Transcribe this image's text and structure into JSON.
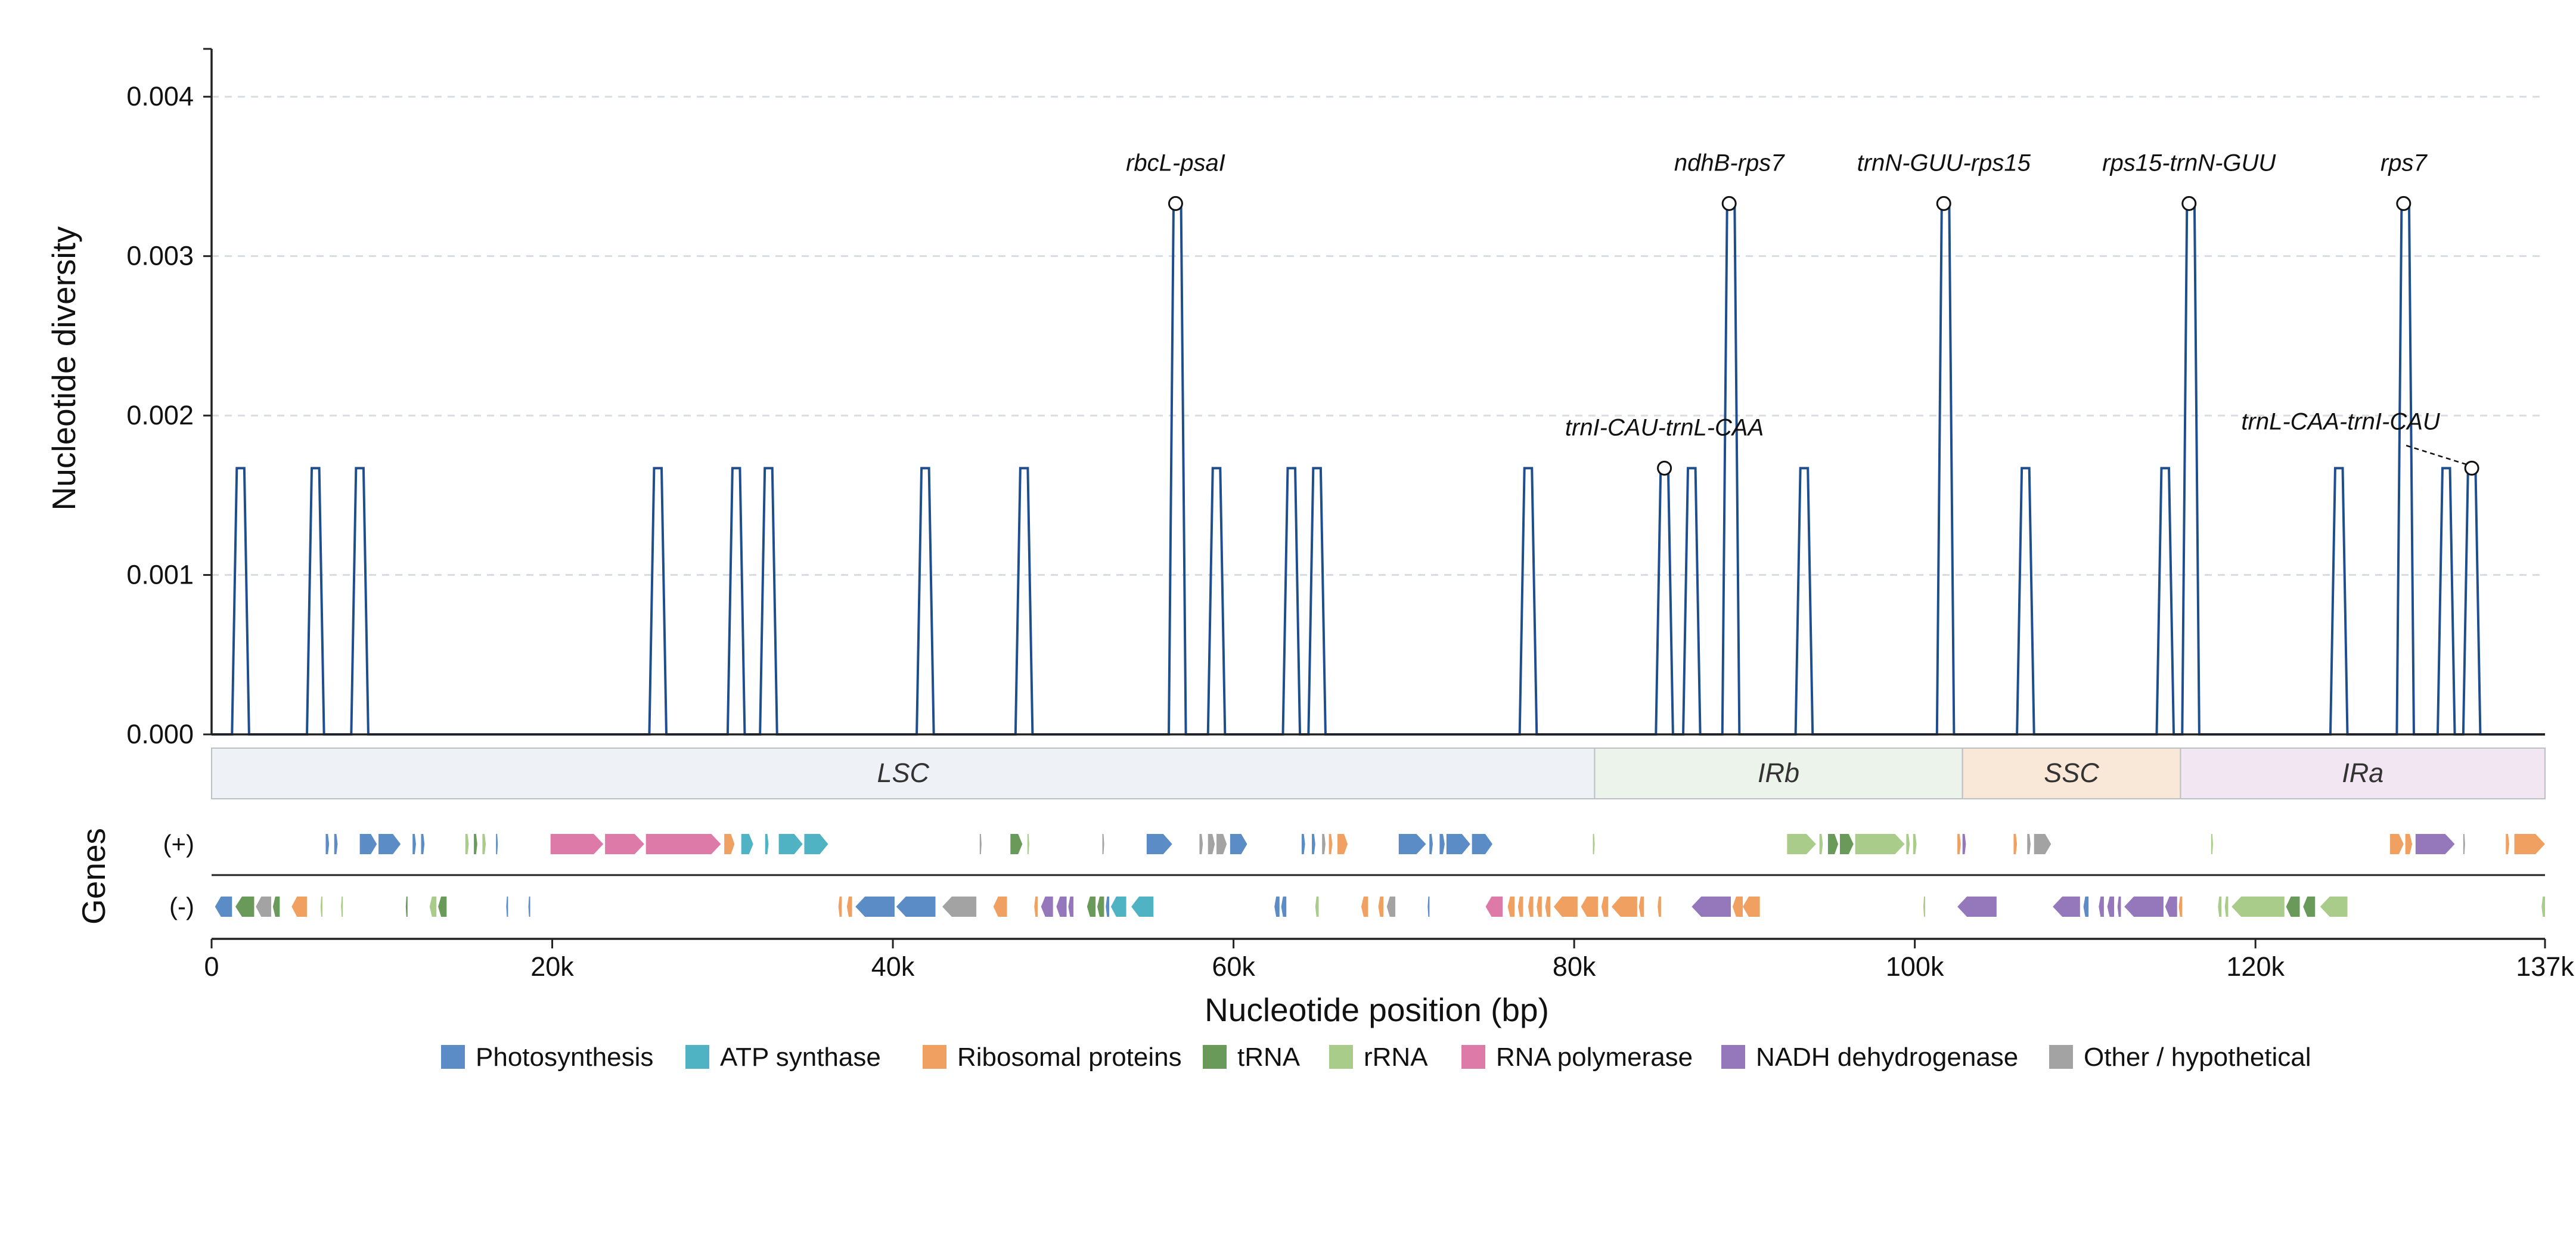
{
  "chart_data": {
    "type": "line",
    "ylabel": "Nucleotide diversity",
    "xlabel": "Nucleotide position (bp)",
    "xlim": [
      0,
      137000
    ],
    "ylim": [
      0,
      0.0043
    ],
    "grid": "horizontal-dashed",
    "y_ticks": [
      {
        "value": 0.0,
        "label": "0.000"
      },
      {
        "value": 0.001,
        "label": "0.001"
      },
      {
        "value": 0.002,
        "label": "0.002"
      },
      {
        "value": 0.003,
        "label": "0.003"
      },
      {
        "value": 0.004,
        "label": "0.004"
      }
    ],
    "x_ticks": [
      {
        "value": 0,
        "label": "0"
      },
      {
        "value": 20000,
        "label": "20k"
      },
      {
        "value": 40000,
        "label": "40k"
      },
      {
        "value": 60000,
        "label": "60k"
      },
      {
        "value": 80000,
        "label": "80k"
      },
      {
        "value": 100000,
        "label": "100k"
      },
      {
        "value": 120000,
        "label": "120k"
      },
      {
        "value": 137000,
        "label": "137k"
      }
    ],
    "peaks": [
      {
        "center": 1700,
        "pi": 0.00167
      },
      {
        "center": 6100,
        "pi": 0.00167
      },
      {
        "center": 8700,
        "pi": 0.00167
      },
      {
        "center": 26200,
        "pi": 0.00167
      },
      {
        "center": 30800,
        "pi": 0.00167
      },
      {
        "center": 32700,
        "pi": 0.00167
      },
      {
        "center": 41900,
        "pi": 0.00167
      },
      {
        "center": 47700,
        "pi": 0.00167
      },
      {
        "center": 56700,
        "pi": 0.00333
      },
      {
        "center": 59000,
        "pi": 0.00167
      },
      {
        "center": 63400,
        "pi": 0.00167
      },
      {
        "center": 64900,
        "pi": 0.00167
      },
      {
        "center": 77300,
        "pi": 0.00167
      },
      {
        "center": 85300,
        "pi": 0.00167
      },
      {
        "center": 86900,
        "pi": 0.00167
      },
      {
        "center": 89200,
        "pi": 0.00333
      },
      {
        "center": 93500,
        "pi": 0.00167
      },
      {
        "center": 101800,
        "pi": 0.00333
      },
      {
        "center": 106500,
        "pi": 0.00167
      },
      {
        "center": 114700,
        "pi": 0.00167
      },
      {
        "center": 116200,
        "pi": 0.00333
      },
      {
        "center": 124900,
        "pi": 0.00167
      },
      {
        "center": 128800,
        "pi": 0.00333
      },
      {
        "center": 131200,
        "pi": 0.00167
      },
      {
        "center": 132700,
        "pi": 0.00167
      }
    ],
    "annotations": [
      {
        "label": "rbcL-psaI",
        "x": 56600,
        "y": 0.00333
      },
      {
        "label": "trnI-CAU-trnL-CAA",
        "x": 85300,
        "y": 0.00167
      },
      {
        "label": "ndhB-rps7",
        "x": 89100,
        "y": 0.00333
      },
      {
        "label": "trnN-GUU-rps15",
        "x": 101700,
        "y": 0.00333
      },
      {
        "label": "rps15-trnN-GUU",
        "x": 116100,
        "y": 0.00333
      },
      {
        "label": "rps7",
        "x": 128700,
        "y": 0.00333
      },
      {
        "label": "trnL-CAA-trnI-CAU",
        "x": 132700,
        "y": 0.00167,
        "leader": true
      }
    ],
    "regions": [
      {
        "name": "LSC",
        "start": 0,
        "end": 81200,
        "fill": "#eef2f6"
      },
      {
        "name": "IRb",
        "start": 81200,
        "end": 102800,
        "fill": "#ecf3ea"
      },
      {
        "name": "SSC",
        "start": 102800,
        "end": 115600,
        "fill": "#f9e8d8"
      },
      {
        "name": "IRa",
        "start": 115600,
        "end": 137000,
        "fill": "#f1e6f1"
      }
    ],
    "gene_track_label": "Genes",
    "strand_labels": {
      "plus": "(+)",
      "minus": "(-)"
    },
    "gene_categories": [
      {
        "key": "photo",
        "name": "Photosynthesis",
        "color": "#5b8cc6"
      },
      {
        "key": "atp",
        "name": "ATP synthase",
        "color": "#4fb3c4"
      },
      {
        "key": "ribo",
        "name": "Ribosomal proteins",
        "color": "#f0a060"
      },
      {
        "key": "trna",
        "name": "tRNA",
        "color": "#6a9a5a"
      },
      {
        "key": "rrna",
        "name": "rRNA",
        "color": "#a9cc8a"
      },
      {
        "key": "rnap",
        "name": "RNA polymerase",
        "color": "#dd7aa8"
      },
      {
        "key": "ndh",
        "name": "NADH dehydrogenase",
        "color": "#9478bb"
      },
      {
        "key": "other",
        "name": "Other / hypothetical",
        "color": "#a3a3a3"
      }
    ],
    "genes_plus": [
      [
        6700,
        6900,
        "photo"
      ],
      [
        7200,
        7400,
        "photo"
      ],
      [
        8700,
        9700,
        "photo"
      ],
      [
        9800,
        11100,
        "photo"
      ],
      [
        11800,
        12000,
        "photo"
      ],
      [
        12300,
        12500,
        "photo"
      ],
      [
        14900,
        15100,
        "rrna"
      ],
      [
        15400,
        15600,
        "trna"
      ],
      [
        15900,
        16100,
        "rrna"
      ],
      [
        16700,
        16800,
        "photo"
      ],
      [
        19900,
        23000,
        "rnap"
      ],
      [
        23100,
        25400,
        "rnap"
      ],
      [
        25500,
        29900,
        "rnap"
      ],
      [
        30100,
        30700,
        "ribo"
      ],
      [
        31100,
        31800,
        "atp"
      ],
      [
        32500,
        32700,
        "atp"
      ],
      [
        33300,
        34700,
        "atp"
      ],
      [
        34800,
        36200,
        "atp"
      ],
      [
        45100,
        45200,
        "other"
      ],
      [
        46900,
        47600,
        "trna"
      ],
      [
        47900,
        48000,
        "rrna"
      ],
      [
        52300,
        52400,
        "other"
      ],
      [
        54900,
        56400,
        "photo"
      ],
      [
        58000,
        58200,
        "other"
      ],
      [
        58500,
        58900,
        "other"
      ],
      [
        59000,
        59600,
        "other"
      ],
      [
        59800,
        60800,
        "photo"
      ],
      [
        64000,
        64200,
        "photo"
      ],
      [
        64600,
        64800,
        "photo"
      ],
      [
        65200,
        65400,
        "other"
      ],
      [
        65600,
        65800,
        "ribo"
      ],
      [
        66100,
        66700,
        "ribo"
      ],
      [
        69700,
        71300,
        "photo"
      ],
      [
        71500,
        71700,
        "photo"
      ],
      [
        72100,
        72400,
        "photo"
      ],
      [
        72500,
        73900,
        "photo"
      ],
      [
        74000,
        75200,
        "photo"
      ],
      [
        81100,
        81200,
        "rrna"
      ],
      [
        92500,
        94200,
        "rrna"
      ],
      [
        94400,
        94600,
        "rrna"
      ],
      [
        94900,
        95500,
        "trna"
      ],
      [
        95600,
        96400,
        "trna"
      ],
      [
        96500,
        99400,
        "rrna"
      ],
      [
        99500,
        99700,
        "rrna"
      ],
      [
        99900,
        100100,
        "rrna"
      ],
      [
        102500,
        102700,
        "ribo"
      ],
      [
        102800,
        103000,
        "ndh"
      ],
      [
        105800,
        106000,
        "ribo"
      ],
      [
        106600,
        106800,
        "other"
      ],
      [
        107000,
        108000,
        "other"
      ],
      [
        117400,
        117500,
        "rrna"
      ],
      [
        127900,
        128700,
        "ribo"
      ],
      [
        128800,
        129200,
        "ribo"
      ],
      [
        129400,
        131700,
        "ndh"
      ],
      [
        132200,
        132300,
        "other"
      ],
      [
        134700,
        134900,
        "ribo"
      ],
      [
        135200,
        137000,
        "ribo"
      ]
    ],
    "genes_minus": [
      [
        200,
        1200,
        "photo"
      ],
      [
        1400,
        2500,
        "trna"
      ],
      [
        2600,
        3500,
        "other"
      ],
      [
        3600,
        4000,
        "trna"
      ],
      [
        4700,
        5600,
        "ribo"
      ],
      [
        6400,
        6500,
        "rrna"
      ],
      [
        7600,
        7700,
        "rrna"
      ],
      [
        11400,
        11500,
        "trna"
      ],
      [
        12800,
        13200,
        "rrna"
      ],
      [
        13300,
        13800,
        "trna"
      ],
      [
        17300,
        17400,
        "photo"
      ],
      [
        18600,
        18700,
        "photo"
      ],
      [
        36800,
        37000,
        "ribo"
      ],
      [
        37300,
        37600,
        "ribo"
      ],
      [
        37800,
        40100,
        "photo"
      ],
      [
        40200,
        42500,
        "photo"
      ],
      [
        42900,
        44900,
        "other"
      ],
      [
        45900,
        46700,
        "ribo"
      ],
      [
        48300,
        48500,
        "ribo"
      ],
      [
        48700,
        49400,
        "ndh"
      ],
      [
        49600,
        50200,
        "ndh"
      ],
      [
        50300,
        50600,
        "ndh"
      ],
      [
        51400,
        51900,
        "trna"
      ],
      [
        52000,
        52400,
        "trna"
      ],
      [
        52500,
        52700,
        "photo"
      ],
      [
        52800,
        53700,
        "atp"
      ],
      [
        54000,
        55300,
        "atp"
      ],
      [
        62400,
        62700,
        "photo"
      ],
      [
        62800,
        63100,
        "photo"
      ],
      [
        64800,
        65000,
        "rrna"
      ],
      [
        67500,
        67900,
        "ribo"
      ],
      [
        68500,
        68800,
        "ribo"
      ],
      [
        69000,
        69500,
        "other"
      ],
      [
        71400,
        71500,
        "photo"
      ],
      [
        74800,
        75800,
        "rnap"
      ],
      [
        76100,
        76500,
        "ribo"
      ],
      [
        76700,
        77000,
        "ribo"
      ],
      [
        77300,
        77600,
        "ribo"
      ],
      [
        77800,
        78100,
        "ribo"
      ],
      [
        78300,
        78600,
        "ribo"
      ],
      [
        78800,
        80200,
        "ribo"
      ],
      [
        80400,
        81400,
        "ribo"
      ],
      [
        81600,
        82000,
        "ribo"
      ],
      [
        82200,
        83700,
        "ribo"
      ],
      [
        83800,
        84100,
        "ribo"
      ],
      [
        84900,
        85100,
        "ribo"
      ],
      [
        86900,
        89200,
        "ndh"
      ],
      [
        89300,
        89900,
        "ribo"
      ],
      [
        89900,
        90900,
        "ribo"
      ],
      [
        100500,
        100600,
        "rrna"
      ],
      [
        102500,
        104800,
        "ndh"
      ],
      [
        108100,
        109700,
        "ndh"
      ],
      [
        109900,
        110200,
        "photo"
      ],
      [
        110800,
        111100,
        "ndh"
      ],
      [
        111300,
        111700,
        "ndh"
      ],
      [
        111900,
        112100,
        "ndh"
      ],
      [
        112300,
        114600,
        "ndh"
      ],
      [
        114700,
        115400,
        "ndh"
      ],
      [
        115500,
        115700,
        "ribo"
      ],
      [
        117800,
        118000,
        "rrna"
      ],
      [
        118200,
        118400,
        "rrna"
      ],
      [
        118600,
        121700,
        "rrna"
      ],
      [
        121800,
        122600,
        "trna"
      ],
      [
        122800,
        123500,
        "trna"
      ],
      [
        123800,
        125400,
        "rrna"
      ],
      [
        136800,
        137000,
        "rrna"
      ]
    ]
  }
}
